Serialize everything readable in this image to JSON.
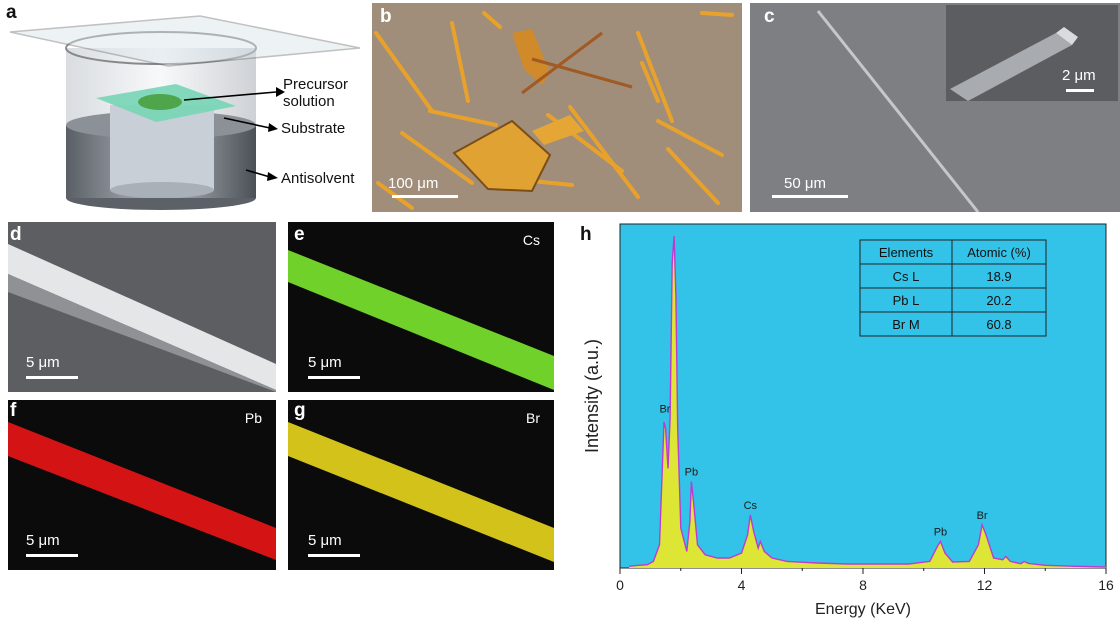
{
  "panels": {
    "a": {
      "label": "a",
      "callouts": [
        "Precursor\nsolution",
        "Substrate",
        "Antisolvent"
      ]
    },
    "b": {
      "label": "b",
      "scale": "100 μm"
    },
    "c": {
      "label": "c",
      "scale": "50 μm",
      "inset_scale": "2 μm"
    },
    "d": {
      "label": "d",
      "scale": "5 μm"
    },
    "e": {
      "label": "e",
      "scale": "5 μm",
      "element": "Cs",
      "color": "#6fd12a"
    },
    "f": {
      "label": "f",
      "scale": "5 μm",
      "element": "Pb",
      "color": "#d41414"
    },
    "g": {
      "label": "g",
      "scale": "5 μm",
      "element": "Br",
      "color": "#d2c21a"
    },
    "h": {
      "label": "h"
    }
  },
  "chart_data": {
    "type": "area",
    "title": "",
    "xlabel": "Energy (KeV)",
    "ylabel": "Intensity (a.u.)",
    "xlim": [
      0,
      16
    ],
    "xticks": [
      0,
      4,
      8,
      12,
      16
    ],
    "background": "#33c3e8",
    "fill_color": "#dde634",
    "line_color": "#c03ad0",
    "peaks": [
      {
        "label": "Br",
        "x": 1.48,
        "y": 0.45
      },
      {
        "label": "Pb",
        "x": 2.35,
        "y": 0.26
      },
      {
        "label": "Cs",
        "x": 4.29,
        "y": 0.16
      },
      {
        "label": "Pb",
        "x": 10.55,
        "y": 0.08
      },
      {
        "label": "Br",
        "x": 11.92,
        "y": 0.13
      }
    ],
    "spectrum": {
      "x": [
        0.3,
        0.6,
        0.9,
        1.1,
        1.3,
        1.45,
        1.5,
        1.58,
        1.65,
        1.72,
        1.78,
        1.84,
        1.9,
        2.0,
        2.2,
        2.3,
        2.35,
        2.42,
        2.55,
        2.8,
        3.2,
        3.6,
        4.0,
        4.2,
        4.29,
        4.4,
        4.55,
        4.62,
        4.75,
        5.0,
        5.5,
        6.5,
        7.5,
        8.5,
        9.5,
        10.2,
        10.45,
        10.55,
        10.7,
        10.95,
        11.5,
        11.8,
        11.92,
        12.05,
        12.3,
        12.6,
        12.7,
        12.85,
        13.2,
        13.3,
        13.45,
        14.0,
        15.0,
        16.0
      ],
      "y": [
        0.005,
        0.008,
        0.01,
        0.02,
        0.07,
        0.44,
        0.42,
        0.3,
        0.45,
        0.92,
        1.0,
        0.82,
        0.42,
        0.12,
        0.05,
        0.14,
        0.26,
        0.2,
        0.07,
        0.04,
        0.03,
        0.03,
        0.045,
        0.1,
        0.16,
        0.11,
        0.06,
        0.08,
        0.05,
        0.03,
        0.02,
        0.015,
        0.012,
        0.012,
        0.012,
        0.02,
        0.065,
        0.08,
        0.045,
        0.018,
        0.02,
        0.07,
        0.13,
        0.1,
        0.03,
        0.025,
        0.035,
        0.02,
        0.013,
        0.02,
        0.014,
        0.008,
        0.005,
        0.003
      ]
    },
    "table": {
      "headers": [
        "Elements",
        "Atomic (%)"
      ],
      "rows": [
        [
          "Cs L",
          "18.9"
        ],
        [
          "Pb L",
          "20.2"
        ],
        [
          "Br M",
          "60.8"
        ]
      ]
    }
  }
}
